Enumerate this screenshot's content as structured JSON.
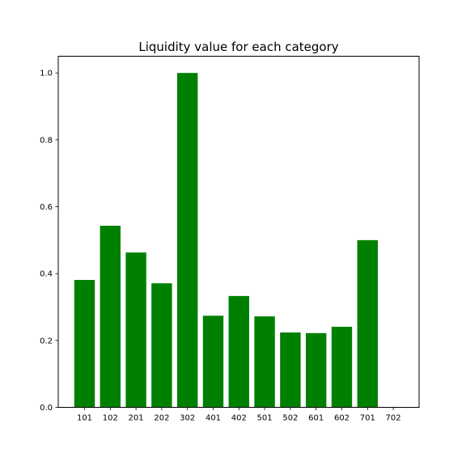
{
  "chart_data": {
    "type": "bar",
    "title": "Liquidity value for each category",
    "xlabel": "",
    "ylabel": "",
    "categories": [
      "101",
      "102",
      "201",
      "202",
      "302",
      "401",
      "402",
      "501",
      "502",
      "601",
      "602",
      "701",
      "702"
    ],
    "values": [
      0.381,
      0.543,
      0.463,
      0.371,
      1.0,
      0.274,
      0.333,
      0.272,
      0.224,
      0.222,
      0.241,
      0.5,
      0.0
    ],
    "ylim": [
      0,
      1.05
    ],
    "yticks": [
      "0.0",
      "0.2",
      "0.4",
      "0.6",
      "0.8",
      "1.0"
    ],
    "grid": false,
    "bar_color": "#008000"
  }
}
